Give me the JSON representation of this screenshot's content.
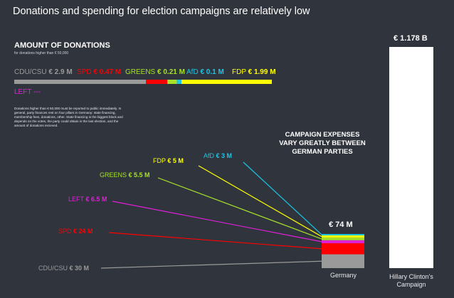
{
  "title": "Donations and spending for election campaigns are relatively low",
  "chart_data": [
    {
      "type": "bar",
      "orientation": "stacked-horizontal",
      "title": "AMOUNT OF DONATIONS",
      "subtitle": "for donations higher than € 50,000",
      "series": [
        {
          "name": "CDU/CSU",
          "value": 2.9,
          "label": "€ 2.9 M",
          "color": "#9a9a9a"
        },
        {
          "name": "SPD",
          "value": 0.47,
          "label": "€ 0.47 M",
          "color": "#ff0000"
        },
        {
          "name": "GREENS",
          "value": 0.21,
          "label": "€ 0.21 M",
          "color": "#a8e02a"
        },
        {
          "name": "AfD",
          "value": 0.1,
          "label": "€ 0.1 M",
          "color": "#19c8e6"
        },
        {
          "name": "FDP",
          "value": 1.99,
          "label": "€ 1.99 M",
          "color": "#ffff00"
        },
        {
          "name": "LEFT",
          "value": 0,
          "label": "---",
          "color": "#e020d8"
        }
      ],
      "note": "Donations higher than € 50,000 must be reported to public immediately. In general, party finances rest on four pillars in Germany: state financing, membership fees, donations, other. State financing is the biggest block and depends on the votes, the party could obtain in the last election, and the amount of donations recieved."
    },
    {
      "type": "bar",
      "orientation": "stacked-vertical",
      "title": "CAMPAIGN EXPENSES VARY GREATLY BETWEEN GERMAN PARTIES",
      "categories": [
        "Germany",
        "Hillary Clinton's Campaign"
      ],
      "totals": [
        {
          "category": "Germany",
          "value_millions": 74,
          "label": "€ 74 M"
        },
        {
          "category": "Hillary Clinton's Campaign",
          "value_millions": 1178,
          "label": "€ 1.178 B"
        }
      ],
      "series": [
        {
          "name": "CDU/CSU",
          "value": 30,
          "label": "€ 30 M",
          "color": "#9a9a9a"
        },
        {
          "name": "SPD",
          "value": 24,
          "label": "€ 24 M",
          "color": "#ff0000"
        },
        {
          "name": "LEFT",
          "value": 6.5,
          "label": "€ 6.5 M",
          "color": "#e020d8"
        },
        {
          "name": "GREENS",
          "value": 5.5,
          "label": "€ 5.5 M",
          "color": "#a8e02a"
        },
        {
          "name": "FDP",
          "value": 5,
          "label": "€ 5 M",
          "color": "#ffff00"
        },
        {
          "name": "AfD",
          "value": 3,
          "label": "€ 3 M",
          "color": "#19c8e6"
        }
      ],
      "germany_label": "Germany",
      "clinton_label": "Hillary Clinton's Campaign",
      "clinton_total_color": "#ffffff"
    }
  ]
}
